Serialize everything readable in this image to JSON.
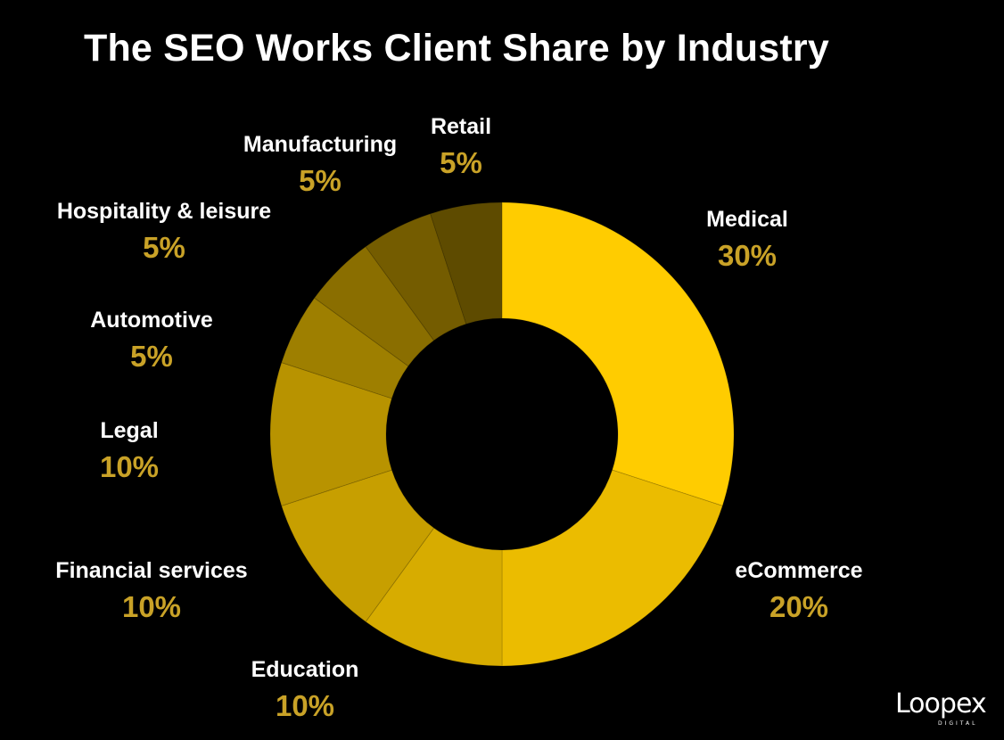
{
  "chart_data": {
    "type": "pie",
    "variant": "donut",
    "title": "The SEO Works Client Share by Industry",
    "slices": [
      {
        "label": "Medical",
        "value": 30,
        "display": "30%",
        "color": "#ffcc00"
      },
      {
        "label": "eCommerce",
        "value": 20,
        "display": "20%",
        "color": "#ebbc00"
      },
      {
        "label": "Education",
        "value": 10,
        "display": "10%",
        "color": "#d7ac00"
      },
      {
        "label": "Financial services",
        "value": 10,
        "display": "10%",
        "color": "#c79f00"
      },
      {
        "label": "Legal",
        "value": 10,
        "display": "10%",
        "color": "#b89300"
      },
      {
        "label": "Automotive",
        "value": 5,
        "display": "5%",
        "color": "#9e7f00"
      },
      {
        "label": "Hospitality & leisure",
        "value": 5,
        "display": "5%",
        "color": "#8a6e00"
      },
      {
        "label": "Manufacturing",
        "value": 5,
        "display": "5%",
        "color": "#745c00"
      },
      {
        "label": "Retail",
        "value": 5,
        "display": "5%",
        "color": "#5e4b00"
      }
    ]
  },
  "brand": {
    "logo_text": "Loopex",
    "logo_subtext": "DIGITAL"
  }
}
